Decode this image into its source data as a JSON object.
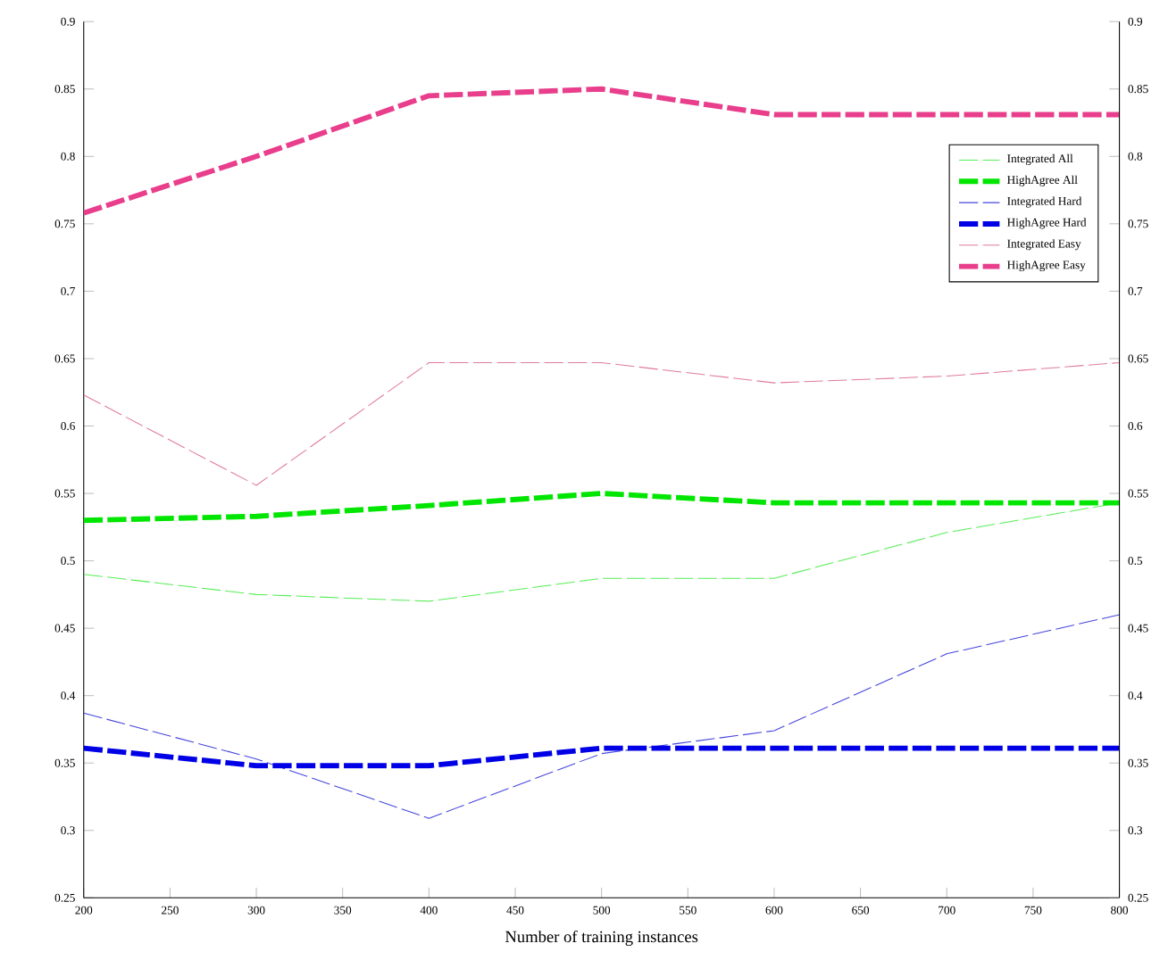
{
  "chart_data": {
    "type": "line",
    "xlabel": "Number of training instances",
    "x": [
      200,
      300,
      400,
      500,
      600,
      700,
      800
    ],
    "series": [
      {
        "name": "Integrated All",
        "color": "#55ee55",
        "line_style": "dashed",
        "values": [
          0.49,
          0.475,
          0.47,
          0.487,
          0.487,
          0.521,
          0.543
        ]
      },
      {
        "name": "HighAgree All",
        "color": "#00e600",
        "line_style": "dashed",
        "values": [
          0.53,
          0.533,
          0.541,
          0.55,
          0.543,
          0.543,
          0.543
        ]
      },
      {
        "name": "Integrated Hard",
        "color": "#4444dd",
        "line_style": "dashed",
        "values": [
          0.387,
          0.353,
          0.309,
          0.357,
          0.374,
          0.431,
          0.46
        ]
      },
      {
        "name": "HighAgree Hard",
        "color": "#0000e6",
        "line_style": "dashed",
        "values": [
          0.361,
          0.348,
          0.348,
          0.361,
          0.361,
          0.361,
          0.361
        ]
      },
      {
        "name": "Integrated Easy",
        "color": "#e07aa0",
        "line_style": "dashed",
        "values": [
          0.623,
          0.556,
          0.647,
          0.647,
          0.632,
          0.637,
          0.647
        ]
      },
      {
        "name": "HighAgree Easy",
        "color": "#e83e8c",
        "line_style": "dashed",
        "values": [
          0.758,
          0.8,
          0.845,
          0.85,
          0.831,
          0.831,
          0.831
        ]
      }
    ],
    "xlim": [
      200,
      800
    ],
    "xticks": [
      200,
      250,
      300,
      350,
      400,
      450,
      500,
      550,
      600,
      650,
      700,
      750,
      800
    ],
    "ylim": [
      0.25,
      0.9
    ],
    "yticks": [
      0.25,
      0.3,
      0.35,
      0.4,
      0.45,
      0.5,
      0.55,
      0.6,
      0.65,
      0.7,
      0.75,
      0.8,
      0.85,
      0.9
    ],
    "y2lim": [
      0.25,
      0.9
    ],
    "y2ticks": [
      0.25,
      0.3,
      0.35,
      0.4,
      0.45,
      0.5,
      0.55,
      0.6,
      0.65,
      0.7,
      0.75,
      0.8,
      0.85,
      0.9
    ],
    "grid": false,
    "legend": "top right",
    "marker": "none"
  }
}
